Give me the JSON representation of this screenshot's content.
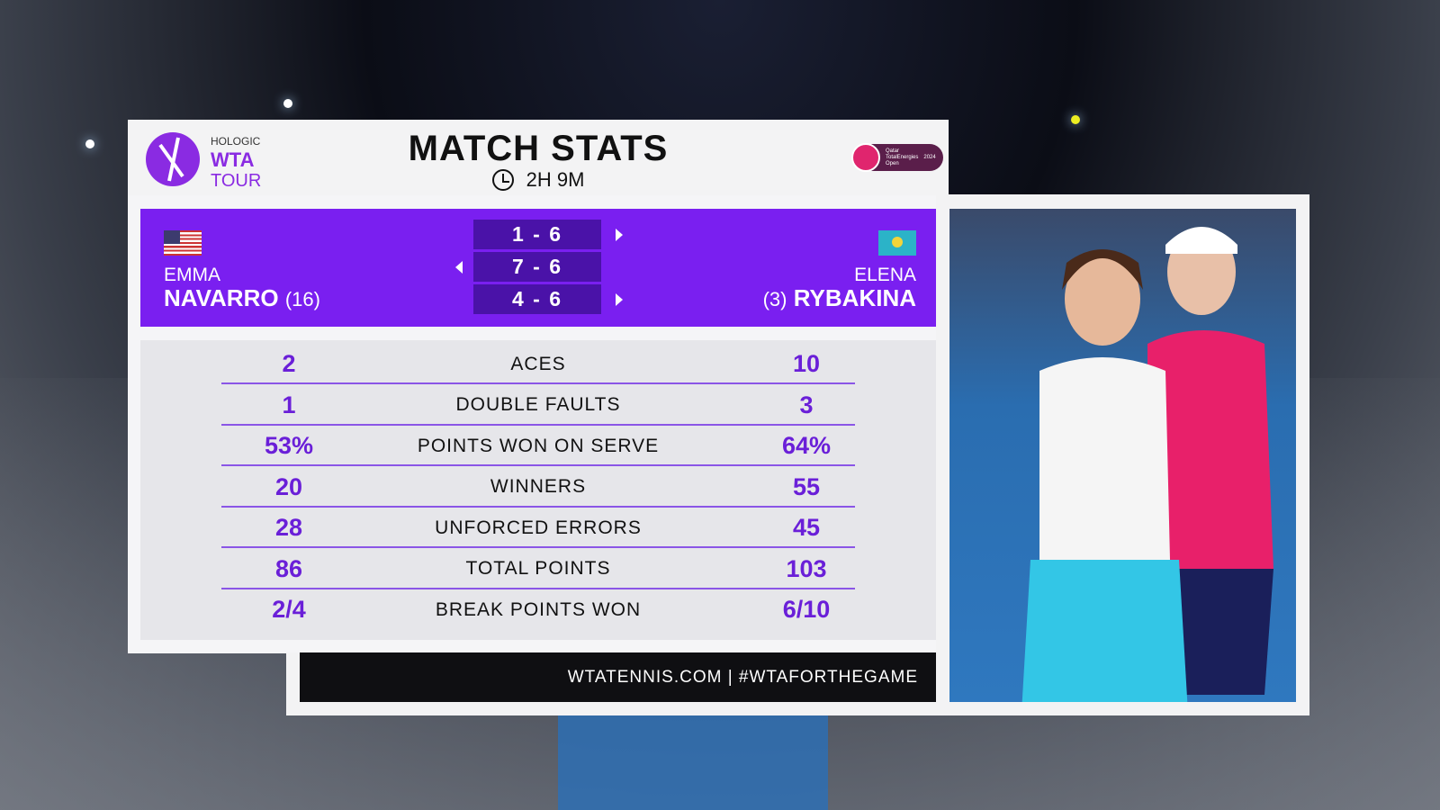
{
  "header": {
    "logo_text": [
      "HOLOGIC",
      "WTA",
      "TOUR"
    ],
    "title": "MATCH STATS",
    "duration": "2H 9M",
    "sponsor_text": [
      "Qatar",
      "TotalEnergies",
      "Open",
      "2024"
    ]
  },
  "players": {
    "left": {
      "first": "EMMA",
      "last": "NAVARRO",
      "seed": "(16)",
      "flag": "USA"
    },
    "right": {
      "first": "ELENA",
      "last": "RYBAKINA",
      "seed": "(3)",
      "flag": "Kazakhstan"
    }
  },
  "sets": [
    {
      "score": "1 - 6",
      "winner": "right"
    },
    {
      "score": "7 - 6",
      "winner": "left"
    },
    {
      "score": "4 - 6",
      "winner": "right"
    }
  ],
  "stats": [
    {
      "label": "ACES",
      "left": "2",
      "right": "10"
    },
    {
      "label": "DOUBLE FAULTS",
      "left": "1",
      "right": "3"
    },
    {
      "label": "POINTS WON ON SERVE",
      "left": "53%",
      "right": "64%"
    },
    {
      "label": "WINNERS",
      "left": "20",
      "right": "55"
    },
    {
      "label": "UNFORCED ERRORS",
      "left": "28",
      "right": "45"
    },
    {
      "label": "TOTAL POINTS",
      "left": "86",
      "right": "103"
    },
    {
      "label": "BREAK POINTS WON",
      "left": "2/4",
      "right": "6/10"
    }
  ],
  "footer": "WTATENNIS.COM | #WTAFORTHEGAME",
  "colors": {
    "purple": "#7a1ff0",
    "dark_purple": "#4a12a8",
    "stat_value": "#6a1fd8"
  }
}
